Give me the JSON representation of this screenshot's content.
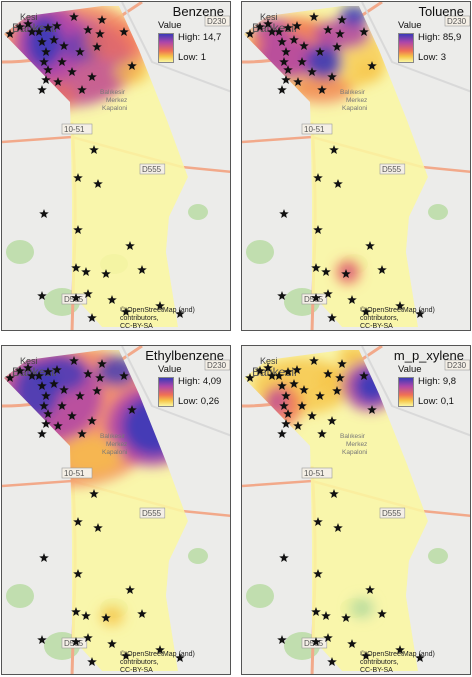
{
  "panels": [
    {
      "title": "Benzene",
      "legend": {
        "label": "Value",
        "high": "High: 14,7",
        "low": "Low: 1"
      }
    },
    {
      "title": "Toluene",
      "legend": {
        "label": "Value",
        "high": "High: 85,9",
        "low": "Low: 3"
      }
    },
    {
      "title": "Ethylbenzene",
      "legend": {
        "label": "Value",
        "high": "High: 4,09",
        "low": "Low: 0,26"
      }
    },
    {
      "title": "m_p_xylene",
      "legend": {
        "label": "Value",
        "high": "High: 9,8",
        "low": "Low: 0,1"
      }
    }
  ],
  "map_labels": {
    "city_line1": "Kesi",
    "city_line2": "Balıkesir",
    "district1": "Balıkesir",
    "district2": "Merkez",
    "district3": "Kapaloni",
    "road1": "D230",
    "road2": "10-51",
    "road3": "D555",
    "road4": "D565"
  },
  "attribution_line1": "© OpenStreetMap (and) contributors,",
  "attribution_line2": "CC-BY-SA",
  "colors": {
    "high": "#3a3ab8",
    "mid_high": "#b046a8",
    "mid": "#f07055",
    "mid_low": "#f6c447",
    "low": "#fbf7a2",
    "basemap": "#ececea",
    "road": "#f2a98a",
    "green_area": "#b7dba0"
  },
  "marker_icon": "star-icon"
}
